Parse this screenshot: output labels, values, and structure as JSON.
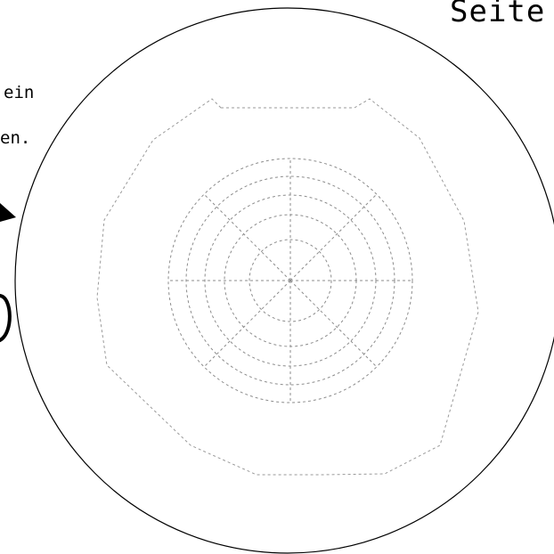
{
  "fragments": {
    "top_right": "Seite",
    "left_line_1": "ein",
    "left_line_2": "en."
  },
  "illustration": {
    "ring_count": 5,
    "spoke_count": 8,
    "outer_shape": "dashed polygon",
    "line_color": "#8c8c8c",
    "outline_color": "#000000"
  }
}
